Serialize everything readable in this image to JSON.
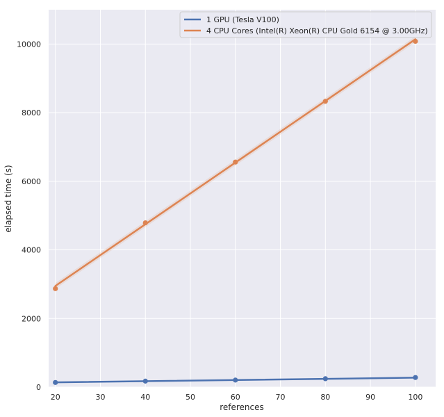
{
  "chart_data": {
    "type": "line",
    "title": "",
    "xlabel": "references",
    "ylabel": "elapsed time (s)",
    "xlim": [
      18.5,
      104.5
    ],
    "ylim": [
      0,
      11000
    ],
    "xticks": [
      20,
      30,
      40,
      50,
      60,
      70,
      80,
      90,
      100
    ],
    "yticks": [
      0,
      2000,
      4000,
      6000,
      8000,
      10000
    ],
    "grid": true,
    "legend_position": "top-right",
    "series": [
      {
        "name": "1 GPU (Tesla V100)",
        "color": "#4c72b0",
        "x": [
          20,
          40,
          60,
          80,
          100
        ],
        "y": [
          135,
          175,
          205,
          245,
          280
        ],
        "fit": [
          140,
          275
        ]
      },
      {
        "name": "4 CPU Cores (Intel(R) Xeon(R) CPU Gold 6154 @ 3.00GHz)",
        "color": "#dd8452",
        "x": [
          20,
          40,
          60,
          80,
          100
        ],
        "y": [
          2870,
          4790,
          6560,
          8330,
          10080
        ],
        "fit": [
          2950,
          10140
        ]
      }
    ]
  }
}
